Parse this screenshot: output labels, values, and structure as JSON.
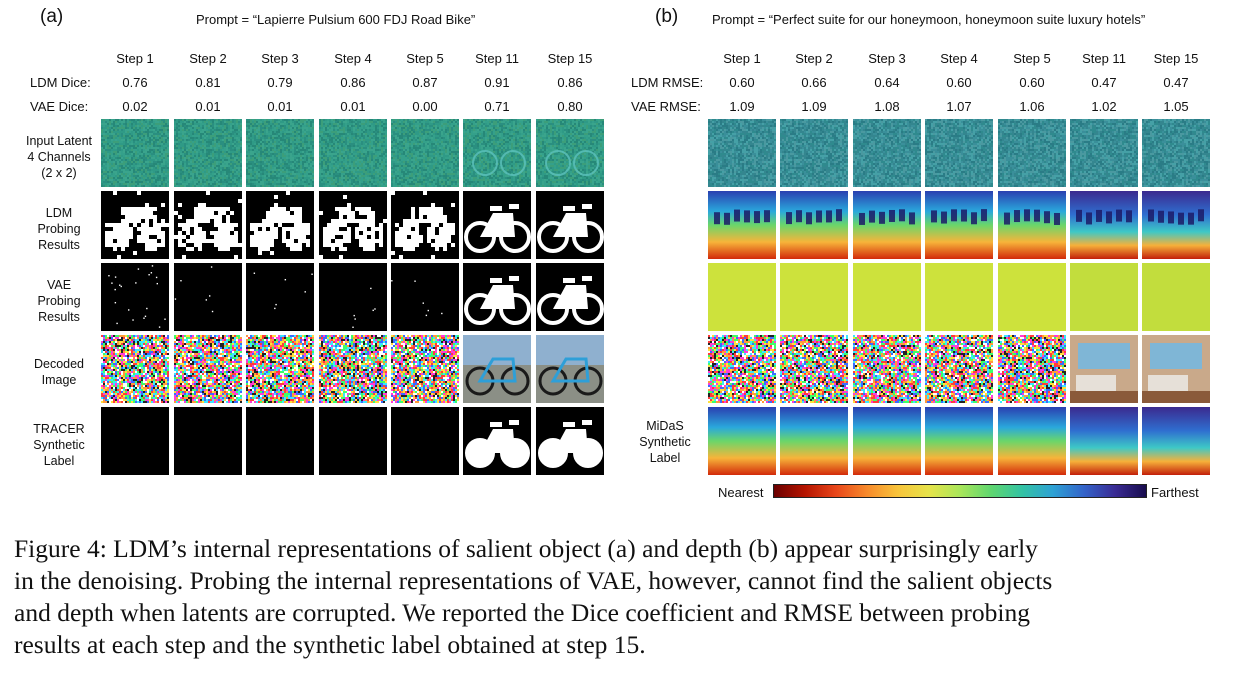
{
  "panel_a": {
    "tag": "(a)",
    "prompt": "Prompt = “Lapierre Pulsium 600 FDJ Road Bike”",
    "steps": [
      "Step 1",
      "Step 2",
      "Step 3",
      "Step 4",
      "Step 5",
      "Step 11",
      "Step 15"
    ],
    "metric_rows": [
      {
        "label": "LDM Dice:",
        "values": [
          "0.76",
          "0.81",
          "0.79",
          "0.86",
          "0.87",
          "0.91",
          "0.86"
        ]
      },
      {
        "label": "VAE Dice:",
        "values": [
          "0.02",
          "0.01",
          "0.01",
          "0.01",
          "0.00",
          "0.71",
          "0.80"
        ]
      }
    ],
    "row_labels": [
      [
        "Input Latent",
        "4 Channels",
        "(2 x 2)"
      ],
      [
        "LDM",
        "Probing",
        "Results"
      ],
      [
        "VAE",
        "Probing",
        "Results"
      ],
      [
        "Decoded",
        "Image"
      ],
      [
        "TRACER",
        "Synthetic",
        "Label"
      ]
    ]
  },
  "panel_b": {
    "tag": "(b)",
    "prompt": "Prompt = “Perfect suite for our honeymoon, honeymoon suite luxury hotels”",
    "steps": [
      "Step 1",
      "Step 2",
      "Step 3",
      "Step 4",
      "Step 5",
      "Step 11",
      "Step 15"
    ],
    "metric_rows": [
      {
        "label": "LDM RMSE:",
        "values": [
          "0.60",
          "0.66",
          "0.64",
          "0.60",
          "0.60",
          "0.47",
          "0.47"
        ]
      },
      {
        "label": "VAE RMSE:",
        "values": [
          "1.09",
          "1.09",
          "1.08",
          "1.07",
          "1.06",
          "1.02",
          "1.05"
        ]
      }
    ],
    "row_labels": [
      [
        "MiDaS",
        "Synthetic",
        "Label"
      ]
    ],
    "colorbar": {
      "left": "Nearest",
      "right": "Farthest"
    }
  },
  "caption": {
    "lines": [
      "Figure 4: LDM’s internal representations of salient object (a) and depth (b) appear surprisingly early",
      "in the denoising. Probing the internal representations of VAE, however, cannot find the salient objects",
      "and depth when latents are corrupted. We reported the Dice coefficient and RMSE between probing",
      "results at each step and the synthetic label obtained at step 15."
    ]
  },
  "colors": {
    "latent": "#2f9a86",
    "black": "#000000",
    "vae_depth": "#c8e03a"
  }
}
